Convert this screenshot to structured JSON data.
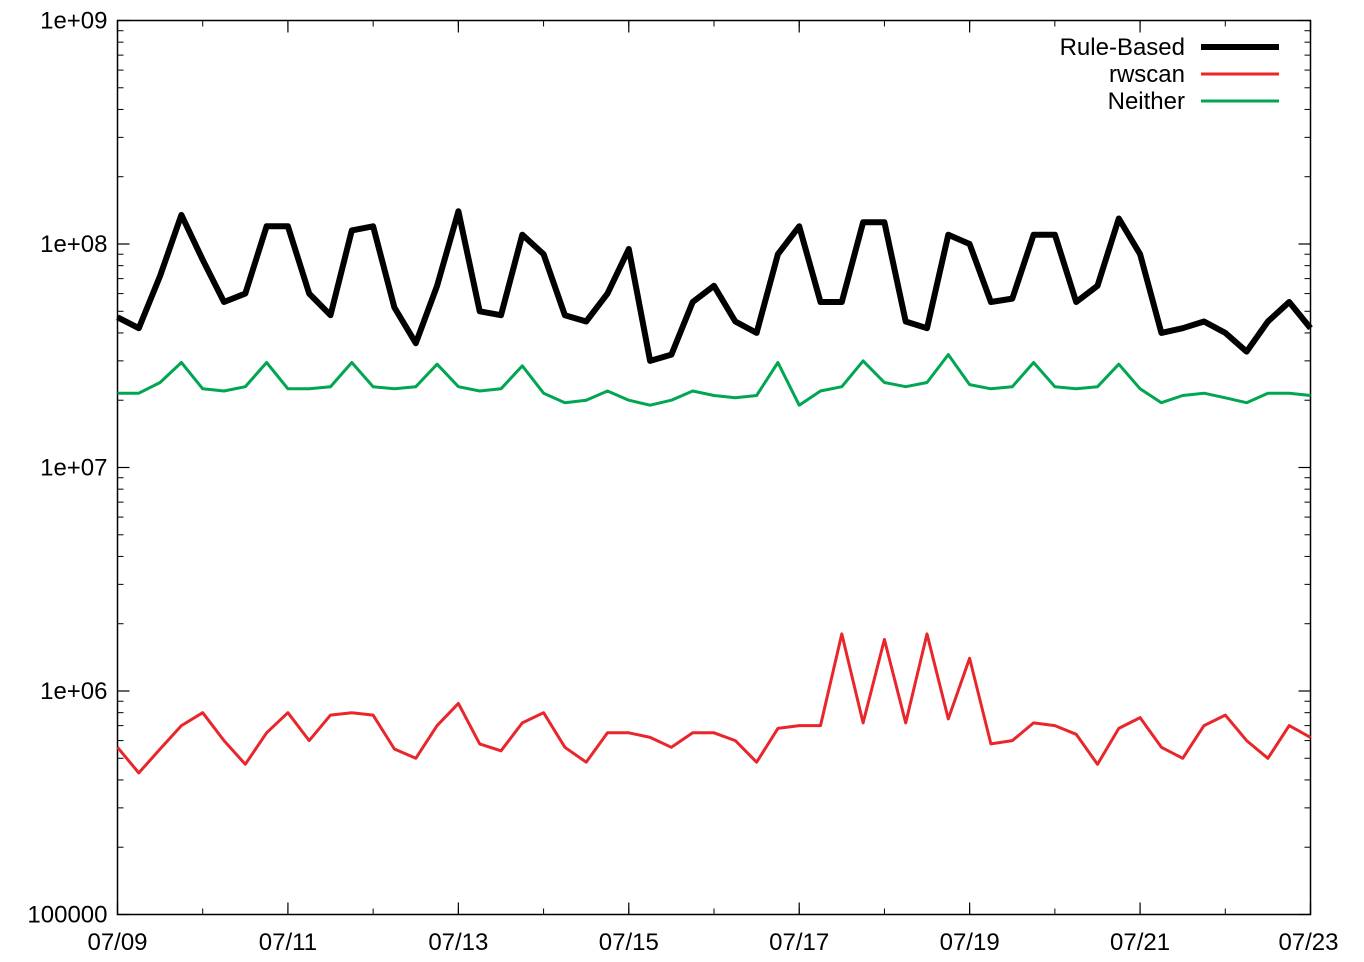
{
  "chart_data": {
    "type": "line",
    "title": "",
    "xlabel": "",
    "ylabel": "",
    "y_scale": "log",
    "ylim": [
      100000,
      1000000000
    ],
    "xlim": [
      "07/09",
      "07/23"
    ],
    "grid": false,
    "legend_position": "top-right",
    "x_tick_labels": [
      "07/09",
      "07/11",
      "07/13",
      "07/15",
      "07/17",
      "07/19",
      "07/21",
      "07/23"
    ],
    "y_tick_labels": [
      "100000",
      "1e+06",
      "1e+07",
      "1e+08",
      "1e+09"
    ],
    "y_tick_values": [
      100000,
      1000000,
      10000000,
      100000000,
      1000000000
    ],
    "series": [
      {
        "name": "Rule-Based",
        "color": "#000000",
        "x": [
          "07/09 00:00",
          "07/09 06:00",
          "07/09 12:00",
          "07/09 18:00",
          "07/10 00:00",
          "07/10 06:00",
          "07/10 12:00",
          "07/10 18:00",
          "07/11 00:00",
          "07/11 06:00",
          "07/11 12:00",
          "07/11 18:00",
          "07/12 00:00",
          "07/12 06:00",
          "07/12 12:00",
          "07/12 18:00",
          "07/13 00:00",
          "07/13 06:00",
          "07/13 12:00",
          "07/13 18:00",
          "07/14 00:00",
          "07/14 06:00",
          "07/14 12:00",
          "07/14 18:00",
          "07/15 00:00",
          "07/15 06:00",
          "07/15 12:00",
          "07/15 18:00",
          "07/16 00:00",
          "07/16 06:00",
          "07/16 12:00",
          "07/16 18:00",
          "07/17 00:00",
          "07/17 06:00",
          "07/17 12:00",
          "07/17 18:00",
          "07/18 00:00",
          "07/18 06:00",
          "07/18 12:00",
          "07/18 18:00",
          "07/19 00:00",
          "07/19 06:00",
          "07/19 12:00",
          "07/19 18:00",
          "07/20 00:00",
          "07/20 06:00",
          "07/20 12:00",
          "07/20 18:00",
          "07/21 00:00",
          "07/21 06:00",
          "07/21 12:00",
          "07/21 18:00",
          "07/22 00:00",
          "07/22 06:00",
          "07/22 12:00",
          "07/22 18:00",
          "07/23 00:00"
        ],
        "values": [
          47000000,
          42000000,
          72000000,
          135000000,
          85000000,
          55000000,
          60000000,
          120000000,
          120000000,
          60000000,
          48000000,
          115000000,
          120000000,
          52000000,
          36000000,
          65000000,
          140000000,
          50000000,
          48000000,
          110000000,
          90000000,
          48000000,
          45000000,
          60000000,
          95000000,
          30000000,
          32000000,
          55000000,
          65000000,
          45000000,
          40000000,
          90000000,
          120000000,
          55000000,
          55000000,
          125000000,
          125000000,
          45000000,
          42000000,
          110000000,
          100000000,
          55000000,
          57000000,
          110000000,
          110000000,
          55000000,
          65000000,
          130000000,
          90000000,
          40000000,
          42000000,
          45000000,
          40000000,
          33000000,
          45000000,
          55000000,
          42000000
        ]
      },
      {
        "name": "rwscan",
        "color": "#e8262b",
        "x": [
          "07/09 00:00",
          "07/09 06:00",
          "07/09 12:00",
          "07/09 18:00",
          "07/10 00:00",
          "07/10 06:00",
          "07/10 12:00",
          "07/10 18:00",
          "07/11 00:00",
          "07/11 06:00",
          "07/11 12:00",
          "07/11 18:00",
          "07/12 00:00",
          "07/12 06:00",
          "07/12 12:00",
          "07/12 18:00",
          "07/13 00:00",
          "07/13 06:00",
          "07/13 12:00",
          "07/13 18:00",
          "07/14 00:00",
          "07/14 06:00",
          "07/14 12:00",
          "07/14 18:00",
          "07/15 00:00",
          "07/15 06:00",
          "07/15 12:00",
          "07/15 18:00",
          "07/16 00:00",
          "07/16 06:00",
          "07/16 12:00",
          "07/16 18:00",
          "07/17 00:00",
          "07/17 06:00",
          "07/17 12:00",
          "07/17 18:00",
          "07/18 00:00",
          "07/18 06:00",
          "07/18 12:00",
          "07/18 18:00",
          "07/19 00:00",
          "07/19 06:00",
          "07/19 12:00",
          "07/19 18:00",
          "07/20 00:00",
          "07/20 06:00",
          "07/20 12:00",
          "07/20 18:00",
          "07/21 00:00",
          "07/21 06:00",
          "07/21 12:00",
          "07/21 18:00",
          "07/22 00:00",
          "07/22 06:00",
          "07/22 12:00",
          "07/22 18:00",
          "07/23 00:00"
        ],
        "values": [
          560000,
          430000,
          550000,
          700000,
          800000,
          600000,
          470000,
          650000,
          800000,
          600000,
          780000,
          800000,
          780000,
          550000,
          500000,
          700000,
          880000,
          580000,
          540000,
          720000,
          800000,
          560000,
          480000,
          650000,
          650000,
          620000,
          560000,
          650000,
          650000,
          600000,
          480000,
          680000,
          700000,
          700000,
          1800000,
          720000,
          1700000,
          720000,
          1800000,
          750000,
          1400000,
          580000,
          600000,
          720000,
          700000,
          640000,
          470000,
          680000,
          760000,
          560000,
          500000,
          700000,
          780000,
          600000,
          500000,
          700000,
          620000
        ]
      },
      {
        "name": "Neither",
        "color": "#00a651",
        "x": [
          "07/09 00:00",
          "07/09 06:00",
          "07/09 12:00",
          "07/09 18:00",
          "07/10 00:00",
          "07/10 06:00",
          "07/10 12:00",
          "07/10 18:00",
          "07/11 00:00",
          "07/11 06:00",
          "07/11 12:00",
          "07/11 18:00",
          "07/12 00:00",
          "07/12 06:00",
          "07/12 12:00",
          "07/12 18:00",
          "07/13 00:00",
          "07/13 06:00",
          "07/13 12:00",
          "07/13 18:00",
          "07/14 00:00",
          "07/14 06:00",
          "07/14 12:00",
          "07/14 18:00",
          "07/15 00:00",
          "07/15 06:00",
          "07/15 12:00",
          "07/15 18:00",
          "07/16 00:00",
          "07/16 06:00",
          "07/16 12:00",
          "07/16 18:00",
          "07/17 00:00",
          "07/17 06:00",
          "07/17 12:00",
          "07/17 18:00",
          "07/18 00:00",
          "07/18 06:00",
          "07/18 12:00",
          "07/18 18:00",
          "07/19 00:00",
          "07/19 06:00",
          "07/19 12:00",
          "07/19 18:00",
          "07/20 00:00",
          "07/20 06:00",
          "07/20 12:00",
          "07/20 18:00",
          "07/21 00:00",
          "07/21 06:00",
          "07/21 12:00",
          "07/21 18:00",
          "07/22 00:00",
          "07/22 06:00",
          "07/22 12:00",
          "07/22 18:00",
          "07/23 00:00"
        ],
        "values": [
          21500000,
          21500000,
          24000000,
          29500000,
          22500000,
          22000000,
          23000000,
          29500000,
          22500000,
          22500000,
          23000000,
          29500000,
          23000000,
          22500000,
          23000000,
          29000000,
          23000000,
          22000000,
          22500000,
          28500000,
          21500000,
          19500000,
          20000000,
          22000000,
          20000000,
          19000000,
          20000000,
          22000000,
          21000000,
          20500000,
          21000000,
          29500000,
          19000000,
          22000000,
          23000000,
          30000000,
          24000000,
          23000000,
          24000000,
          32000000,
          23500000,
          22500000,
          23000000,
          29500000,
          23000000,
          22500000,
          23000000,
          29000000,
          22500000,
          19500000,
          21000000,
          21500000,
          20500000,
          19500000,
          21500000,
          21500000,
          21000000
        ]
      }
    ]
  }
}
